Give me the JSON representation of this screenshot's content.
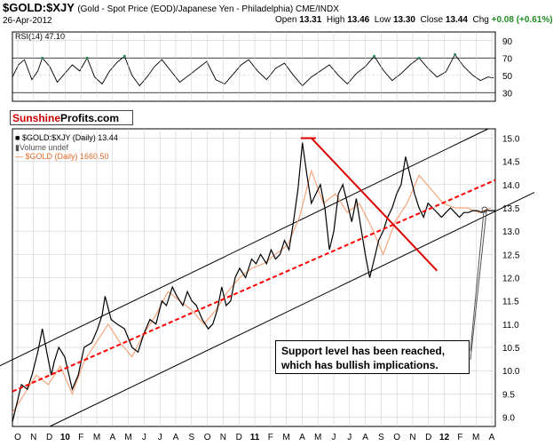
{
  "header": {
    "symbol": "$GOLD:$XJY",
    "description": "(Gold - Spot Price (EOD)/Japanese Yen - Philadelphia) CME/INDX",
    "date": "26-Apr-2012",
    "open_label": "Open",
    "open": "13.31",
    "high_label": "High",
    "high": "13.46",
    "low_label": "Low",
    "low": "13.30",
    "close_label": "Close",
    "close": "13.44",
    "chg_label": "Chg",
    "chg": "+0.08 (+0.61%)"
  },
  "logo": {
    "part1": "Sunshine",
    "part2": "Profits.com"
  },
  "annotation": {
    "line1": "Support level has been reached,",
    "line2": "which has bullish implications."
  },
  "colors": {
    "price": "#000000",
    "ma": "#ff0000",
    "gold": "#f5a57a",
    "channel": "#000000",
    "trend": "#dd0000",
    "grid": "#c8c8c8",
    "rsi_fill": "#2e8b57"
  },
  "chart_data": [
    {
      "type": "line",
      "panel": "rsi",
      "legend": "RSI(14) 47.10",
      "ylim": [
        20,
        100
      ],
      "yticks": [
        30,
        50,
        70,
        90
      ],
      "overbought": 70,
      "oversold": 30,
      "x": [
        0,
        4,
        8,
        13,
        17,
        20,
        25,
        30,
        35,
        40,
        45,
        50,
        55,
        60,
        65,
        70,
        75,
        80,
        85,
        90,
        95,
        100,
        106,
        112,
        118,
        124,
        130,
        136,
        142,
        148,
        153,
        158,
        164,
        170,
        176,
        182,
        188,
        194,
        200,
        206,
        212,
        218,
        224,
        230,
        236,
        242,
        248,
        254,
        260,
        266,
        272,
        278,
        284,
        290,
        296,
        302,
        308,
        313,
        318,
        322
      ],
      "values": [
        48,
        62,
        68,
        45,
        55,
        70,
        60,
        42,
        52,
        62,
        55,
        70,
        48,
        40,
        55,
        65,
        72,
        50,
        38,
        48,
        60,
        68,
        55,
        42,
        50,
        58,
        66,
        45,
        40,
        52,
        62,
        68,
        55,
        45,
        58,
        64,
        50,
        38,
        48,
        55,
        62,
        50,
        40,
        52,
        60,
        72,
        56,
        44,
        52,
        62,
        70,
        58,
        48,
        54,
        74,
        60,
        50,
        44,
        48,
        47
      ]
    },
    {
      "type": "line",
      "panel": "price",
      "title": "$GOLD:$XJY (Daily) 13.44",
      "volume_label": "Volume undef",
      "ylim": [
        8.8,
        15.2
      ],
      "yticks": [
        9.0,
        9.5,
        10.0,
        10.5,
        11.0,
        11.5,
        12.0,
        12.5,
        13.0,
        13.5,
        14.0,
        14.5,
        15.0
      ],
      "x_month_labels": [
        "O",
        "N",
        "D",
        "10",
        "F",
        "M",
        "A",
        "M",
        "J",
        "J",
        "A",
        "S",
        "O",
        "N",
        "D",
        "11",
        "F",
        "M",
        "A",
        "M",
        "J",
        "J",
        "A",
        "S",
        "O",
        "N",
        "D",
        "12",
        "F",
        "M",
        "A"
      ],
      "bold_labels": [
        "10",
        "11",
        "12"
      ],
      "series": [
        {
          "name": "$GOLD:$XJY",
          "x": [
            0,
            3,
            6,
            10,
            13,
            17,
            20,
            23,
            26,
            28,
            31,
            35,
            40,
            44,
            48,
            53,
            57,
            60,
            62,
            66,
            70,
            75,
            80,
            84,
            88,
            92,
            96,
            100,
            103,
            107,
            110,
            114,
            117,
            120,
            123,
            127,
            131,
            134,
            137,
            140,
            143,
            146,
            149,
            152,
            156,
            160,
            163,
            166,
            170,
            173,
            176,
            179,
            182,
            185,
            188,
            191,
            194,
            197,
            200,
            203,
            206,
            209,
            212,
            215,
            218,
            221,
            224,
            227,
            230,
            233,
            236,
            239,
            242,
            245,
            248,
            251,
            254,
            257,
            260,
            263,
            266,
            269,
            272,
            275,
            278,
            281,
            284,
            287,
            290,
            293,
            296,
            299,
            302,
            305,
            308,
            311,
            314,
            317,
            320,
            323
          ],
          "values": [
            8.9,
            9.3,
            9.7,
            9.6,
            9.9,
            10.4,
            10.9,
            10.4,
            9.9,
            10.2,
            10.5,
            10.3,
            9.6,
            9.9,
            10.5,
            10.6,
            10.9,
            11.2,
            11.6,
            11.1,
            11.0,
            10.9,
            10.5,
            10.4,
            10.8,
            11.1,
            11.0,
            11.5,
            11.4,
            11.8,
            11.6,
            11.4,
            11.7,
            11.5,
            11.4,
            11.1,
            10.9,
            11.0,
            11.3,
            11.8,
            11.4,
            11.5,
            12.0,
            12.2,
            12.0,
            12.4,
            12.3,
            12.5,
            12.3,
            12.6,
            12.4,
            12.5,
            12.8,
            12.6,
            13.2,
            13.9,
            14.9,
            14.2,
            13.6,
            13.8,
            14.0,
            13.5,
            12.6,
            13.0,
            13.8,
            14.0,
            13.6,
            13.2,
            13.7,
            13.1,
            12.5,
            12.0,
            12.4,
            12.8,
            13.0,
            13.3,
            13.5,
            13.8,
            14.0,
            14.6,
            14.2,
            13.8,
            13.5,
            13.3,
            13.6,
            13.5,
            13.4,
            13.3,
            13.4,
            13.5,
            13.4,
            13.3,
            13.4,
            13.4,
            13.44,
            13.44,
            13.4,
            13.45,
            13.44,
            13.44
          ]
        },
        {
          "name": "$GOLD (Daily) 1660.50",
          "x": [
            0,
            8,
            16,
            24,
            32,
            40,
            48,
            56,
            64,
            72,
            80,
            88,
            96,
            104,
            112,
            120,
            128,
            136,
            144,
            152,
            160,
            168,
            176,
            184,
            192,
            200,
            208,
            216,
            224,
            232,
            240,
            248,
            256,
            264,
            272,
            280,
            288,
            296,
            304,
            312,
            320
          ],
          "values": [
            9.1,
            9.5,
            9.9,
            9.7,
            10.1,
            9.5,
            10.2,
            10.6,
            11.0,
            10.6,
            10.3,
            10.8,
            11.2,
            11.7,
            11.5,
            11.3,
            11.0,
            11.3,
            11.7,
            12.0,
            12.2,
            12.3,
            12.5,
            12.7,
            13.3,
            14.3,
            13.6,
            13.8,
            13.4,
            13.6,
            13.1,
            12.5,
            13.2,
            13.6,
            14.2,
            13.9,
            13.6,
            13.5,
            13.5,
            13.4,
            13.5
          ]
        },
        {
          "name": "MA",
          "x": [
            0,
            323
          ],
          "values": [
            9.55,
            14.1
          ]
        }
      ],
      "channel_upper": {
        "x": [
          0,
          323
        ],
        "values": [
          10.45,
          15.2
        ]
      },
      "channel_lower": {
        "x": [
          25,
          323
        ],
        "values": [
          8.8,
          13.45
        ]
      },
      "downtrend": {
        "x": [
          200,
          284
        ],
        "values": [
          15.0,
          12.15
        ]
      },
      "gold_legend": "$GOLD (Daily) 1660.50"
    }
  ]
}
